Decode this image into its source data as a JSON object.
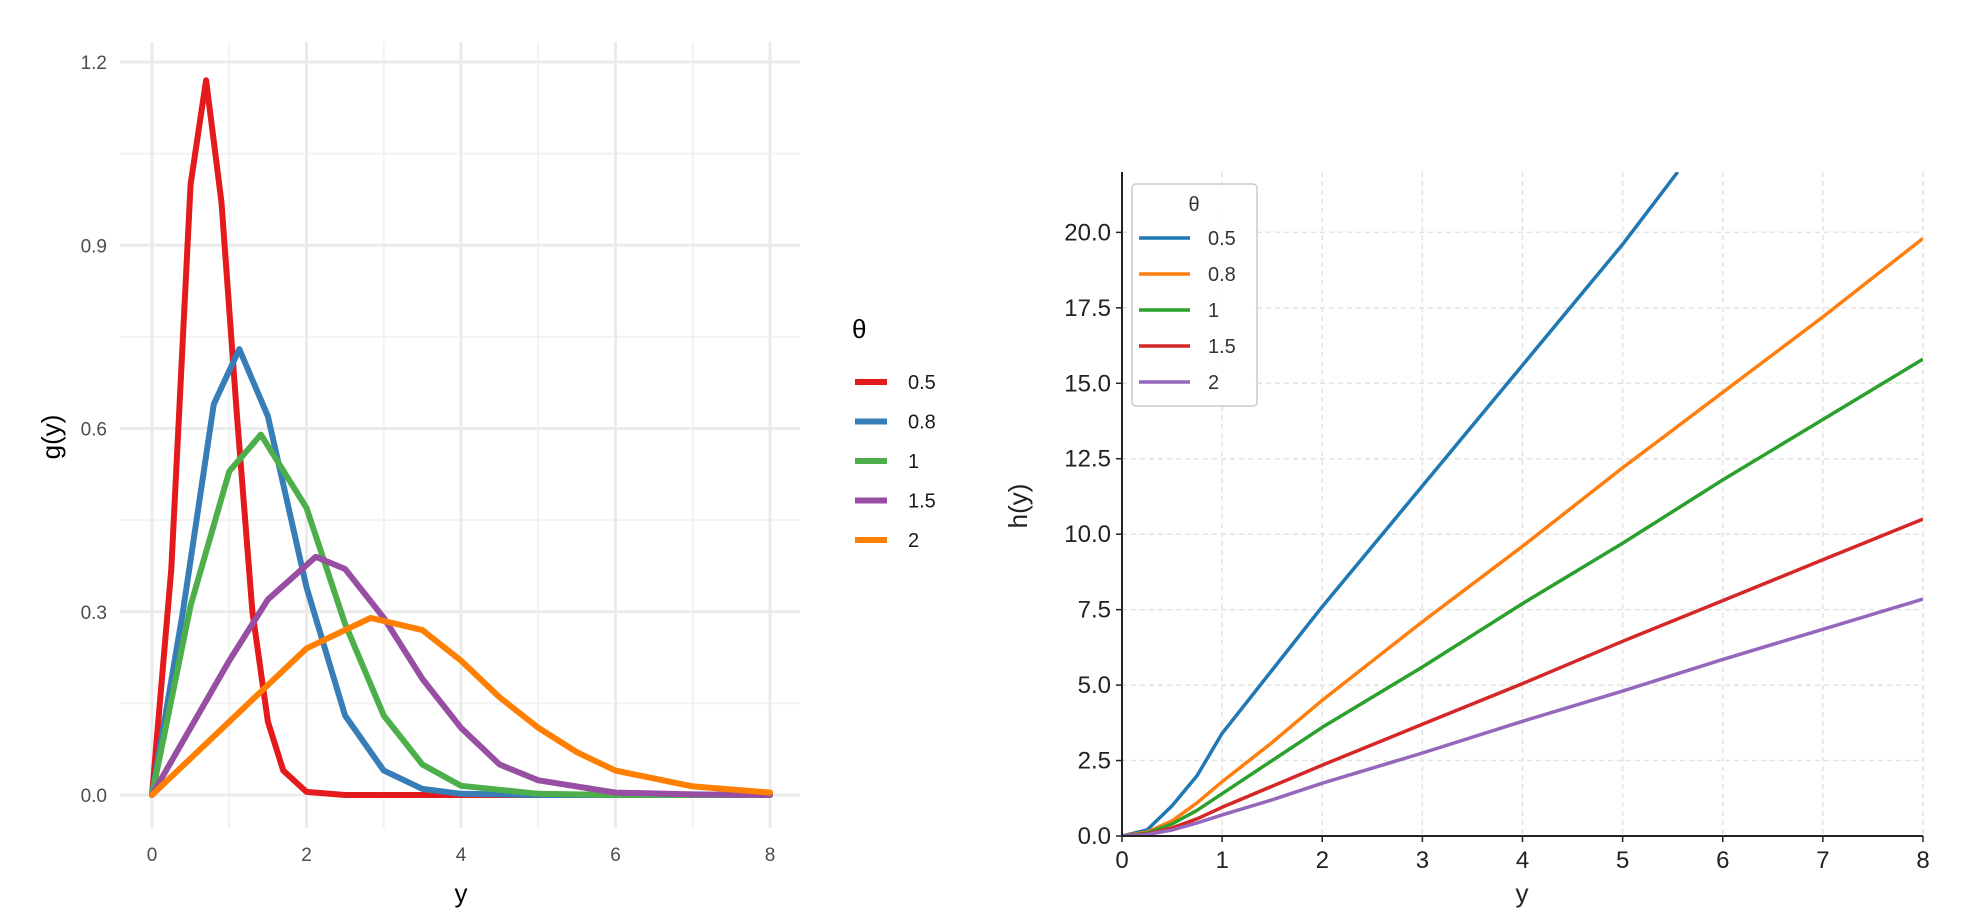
{
  "chart_data": [
    {
      "type": "line",
      "title": "",
      "xlabel": "y",
      "ylabel": "g(y)",
      "xlim": [
        0,
        8
      ],
      "ylim": [
        -0.05,
        1.23
      ],
      "xticks": [
        0,
        2,
        4,
        6,
        8
      ],
      "xtick_labels": [
        "0",
        "2",
        "4",
        "6",
        "8"
      ],
      "yticks": [
        0.0,
        0.3,
        0.6,
        0.9,
        1.2
      ],
      "ytick_labels": [
        "0.0",
        "0.3",
        "0.6",
        "0.9",
        "1.2"
      ],
      "grid": true,
      "legend_title": "θ",
      "legend_position": "right",
      "series": [
        {
          "name": "0.5",
          "color": "#e41a1c",
          "x": [
            0,
            0.25,
            0.5,
            0.7,
            0.9,
            1.1,
            1.3,
            1.5,
            1.7,
            2.0,
            2.5,
            3,
            8
          ],
          "y": [
            0,
            0.37,
            1.0,
            1.17,
            0.97,
            0.62,
            0.3,
            0.12,
            0.04,
            0.005,
            0,
            0,
            0
          ]
        },
        {
          "name": "0.8",
          "color": "#377eb8",
          "x": [
            0,
            0.4,
            0.8,
            1.13,
            1.5,
            2.0,
            2.5,
            3.0,
            3.5,
            4.0,
            5,
            8
          ],
          "y": [
            0,
            0.3,
            0.64,
            0.73,
            0.62,
            0.34,
            0.13,
            0.04,
            0.01,
            0.002,
            0,
            0
          ]
        },
        {
          "name": "1",
          "color": "#4daf4a",
          "x": [
            0,
            0.5,
            1.0,
            1.41,
            2.0,
            2.5,
            3.0,
            3.5,
            4.0,
            5.0,
            6,
            8
          ],
          "y": [
            0,
            0.31,
            0.53,
            0.59,
            0.47,
            0.28,
            0.13,
            0.05,
            0.015,
            0.002,
            0,
            0
          ]
        },
        {
          "name": "1.5",
          "color": "#984ea3",
          "x": [
            0,
            1.0,
            1.5,
            2.12,
            2.5,
            3.0,
            3.5,
            4.0,
            4.5,
            5.0,
            6.0,
            7.0,
            8
          ],
          "y": [
            0,
            0.22,
            0.32,
            0.39,
            0.37,
            0.29,
            0.19,
            0.11,
            0.05,
            0.024,
            0.004,
            0.001,
            0
          ]
        },
        {
          "name": "2",
          "color": "#ff7f00",
          "x": [
            0,
            0.5,
            1.0,
            1.5,
            2.0,
            2.83,
            3.5,
            4.0,
            4.5,
            5.0,
            5.5,
            6.0,
            7.0,
            8.0
          ],
          "y": [
            0,
            0.06,
            0.12,
            0.18,
            0.24,
            0.29,
            0.27,
            0.22,
            0.16,
            0.11,
            0.07,
            0.04,
            0.014,
            0.004
          ]
        }
      ]
    },
    {
      "type": "line",
      "title": "",
      "xlabel": "y",
      "ylabel": "h(y)",
      "xlim": [
        0,
        8
      ],
      "ylim": [
        0,
        22
      ],
      "xticks": [
        0,
        1,
        2,
        3,
        4,
        5,
        6,
        7,
        8
      ],
      "xtick_labels": [
        "0",
        "1",
        "2",
        "3",
        "4",
        "5",
        "6",
        "7",
        "8"
      ],
      "yticks": [
        0,
        2.5,
        5,
        7.5,
        10,
        12.5,
        15,
        17.5,
        20
      ],
      "ytick_labels": [
        "0.0",
        "2.5",
        "5.0",
        "7.5",
        "10.0",
        "12.5",
        "15.0",
        "17.5",
        "20.0"
      ],
      "grid": true,
      "legend_title": "θ",
      "legend_position": "top-left",
      "series": [
        {
          "name": "0.5",
          "color": "#1f77b4",
          "x": [
            0,
            0.25,
            0.5,
            0.75,
            1,
            1.5,
            2,
            3,
            4,
            5,
            5.55
          ],
          "y": [
            0,
            0.2,
            1.0,
            2.0,
            3.4,
            5.5,
            7.6,
            11.6,
            15.6,
            19.6,
            22
          ]
        },
        {
          "name": "0.8",
          "color": "#ff7f0e",
          "x": [
            0,
            0.25,
            0.5,
            0.75,
            1,
            1.5,
            2,
            3,
            4,
            5,
            6,
            7,
            8
          ],
          "y": [
            0,
            0.13,
            0.5,
            1.1,
            1.8,
            3.1,
            4.5,
            7.1,
            9.6,
            12.2,
            14.7,
            17.2,
            19.8
          ]
        },
        {
          "name": "1",
          "color": "#2ca02c",
          "x": [
            0,
            0.25,
            0.5,
            0.75,
            1,
            1.5,
            2,
            3,
            4,
            5,
            6,
            7,
            8
          ],
          "y": [
            0,
            0.1,
            0.4,
            0.85,
            1.4,
            2.5,
            3.6,
            5.6,
            7.7,
            9.7,
            11.8,
            13.8,
            15.8
          ]
        },
        {
          "name": "1.5",
          "color": "#d62728",
          "x": [
            0,
            0.25,
            0.5,
            0.75,
            1,
            1.5,
            2,
            3,
            4,
            5,
            6,
            7,
            8
          ],
          "y": [
            0,
            0.07,
            0.27,
            0.57,
            0.95,
            1.65,
            2.35,
            3.7,
            5.05,
            6.45,
            7.8,
            9.15,
            10.5
          ]
        },
        {
          "name": "2",
          "color": "#9467bd",
          "x": [
            0,
            0.25,
            0.5,
            0.75,
            1,
            1.5,
            2,
            3,
            4,
            5,
            6,
            7,
            8
          ],
          "y": [
            0,
            0.05,
            0.2,
            0.43,
            0.7,
            1.2,
            1.75,
            2.75,
            3.8,
            4.8,
            5.85,
            6.85,
            7.85
          ]
        }
      ]
    }
  ]
}
